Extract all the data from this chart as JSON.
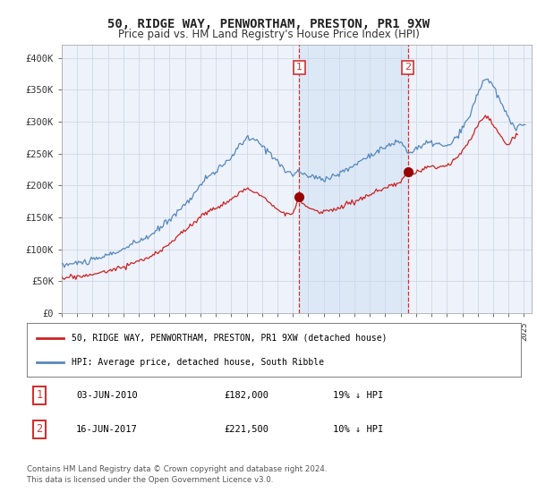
{
  "title": "50, RIDGE WAY, PENWORTHAM, PRESTON, PR1 9XW",
  "subtitle": "Price paid vs. HM Land Registry's House Price Index (HPI)",
  "title_fontsize": 10,
  "subtitle_fontsize": 8.5,
  "ylabel_ticks": [
    "£0",
    "£50K",
    "£100K",
    "£150K",
    "£200K",
    "£250K",
    "£300K",
    "£350K",
    "£400K"
  ],
  "ytick_values": [
    0,
    50000,
    100000,
    150000,
    200000,
    250000,
    300000,
    350000,
    400000
  ],
  "ylim": [
    0,
    420000
  ],
  "xlim_start": 1995.0,
  "xlim_end": 2025.5,
  "background_color": "#ffffff",
  "plot_bg_color": "#eef2fa",
  "grid_color": "#d0d8e8",
  "shade_start": 2010.42,
  "shade_end": 2017.46,
  "shade_color": "#dce8f5",
  "vline1_x": 2010.42,
  "vline2_x": 2017.46,
  "vline_color": "#cc3333",
  "marker1_x": 2010.42,
  "marker1_y": 182000,
  "marker2_x": 2017.46,
  "marker2_y": 221500,
  "marker_color": "#990000",
  "marker_size": 7,
  "sale1_label": "1",
  "sale2_label": "2",
  "sale1_date": "03-JUN-2010",
  "sale1_price": "£182,000",
  "sale1_hpi": "19% ↓ HPI",
  "sale2_date": "16-JUN-2017",
  "sale2_price": "£221,500",
  "sale2_hpi": "10% ↓ HPI",
  "legend1_label": "50, RIDGE WAY, PENWORTHAM, PRESTON, PR1 9XW (detached house)",
  "legend2_label": "HPI: Average price, detached house, South Ribble",
  "line1_color": "#cc2222",
  "line2_color": "#5588bb",
  "footer1": "Contains HM Land Registry data © Crown copyright and database right 2024.",
  "footer2": "This data is licensed under the Open Government Licence v3.0."
}
